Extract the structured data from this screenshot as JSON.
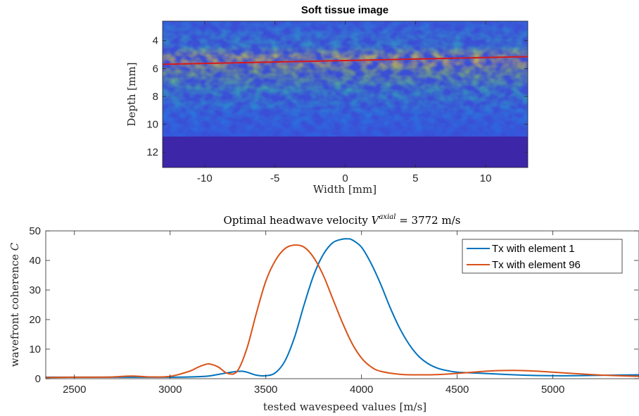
{
  "chart_data": [
    {
      "type": "heatmap",
      "title": "Soft tissue image",
      "xlabel": "Width [mm]",
      "ylabel": "Depth [mm]",
      "xlim": [
        -13,
        13
      ],
      "ylim": [
        13.1,
        2.6
      ],
      "y_reversed": true,
      "xticks": [
        -10,
        -5,
        0,
        5,
        10
      ],
      "yticks": [
        4,
        6,
        8,
        10,
        12
      ],
      "colormap": "parula",
      "imaged_depth_max": 10.8,
      "background_color": "#3e26a8",
      "overlay_line": {
        "x": [
          -13,
          13
        ],
        "y": [
          5.7,
          5.15
        ],
        "color": "#d7191c"
      },
      "bright_band_depth": 5.4
    },
    {
      "type": "line",
      "title_prefix": "Optimal headwave velocity ",
      "title_symbol": "V",
      "title_sup": "axial",
      "title_suffix": " = 3772 m/s",
      "xlabel": "tested wavespeed values [m/s]",
      "ylabel_prefix": "wavefront coherence ",
      "ylabel_symbol": "C",
      "xlim": [
        2350,
        5450
      ],
      "ylim": [
        0,
        50
      ],
      "xticks": [
        2500,
        3000,
        3500,
        4000,
        4500,
        5000
      ],
      "yticks": [
        0,
        10,
        20,
        30,
        40,
        50
      ],
      "legend_position": "top-right",
      "series": [
        {
          "name": "Tx with element 1",
          "color": "#0072bd",
          "x": [
            2350,
            2500,
            2700,
            2900,
            3000,
            3100,
            3200,
            3300,
            3380,
            3450,
            3500,
            3550,
            3600,
            3650,
            3700,
            3750,
            3800,
            3850,
            3900,
            3925,
            3950,
            4000,
            4050,
            4100,
            4150,
            4200,
            4250,
            4300,
            4350,
            4400,
            4450,
            4500,
            4600,
            4700,
            4800,
            4900,
            5000,
            5100,
            5200,
            5300,
            5450
          ],
          "y": [
            0.5,
            0.5,
            0.5,
            0.5,
            0.5,
            0.6,
            0.9,
            2.0,
            2.5,
            1.2,
            1.0,
            2.0,
            6.0,
            14.0,
            25.0,
            35.0,
            42.0,
            46.0,
            47.2,
            47.3,
            47.0,
            44.5,
            39.0,
            32.0,
            24.0,
            17.0,
            11.5,
            7.5,
            5.0,
            3.5,
            2.7,
            2.2,
            1.9,
            1.6,
            1.3,
            1.1,
            1.0,
            1.0,
            1.1,
            1.2,
            1.3
          ]
        },
        {
          "name": "Tx with element 96",
          "color": "#d95319",
          "x": [
            2350,
            2500,
            2600,
            2700,
            2800,
            2900,
            3000,
            3100,
            3150,
            3200,
            3250,
            3300,
            3350,
            3400,
            3450,
            3500,
            3550,
            3600,
            3650,
            3700,
            3750,
            3800,
            3850,
            3900,
            3950,
            4000,
            4050,
            4100,
            4200,
            4300,
            4400,
            4500,
            4600,
            4700,
            4800,
            4900,
            5000,
            5100,
            5200,
            5300,
            5450
          ],
          "y": [
            0.4,
            0.5,
            0.5,
            0.6,
            0.9,
            0.6,
            0.8,
            2.5,
            4.0,
            5.0,
            4.0,
            1.8,
            2.5,
            10.0,
            22.0,
            33.0,
            40.0,
            44.0,
            45.2,
            44.5,
            41.0,
            35.0,
            27.0,
            19.0,
            12.0,
            7.0,
            4.0,
            2.5,
            1.5,
            1.3,
            1.4,
            1.8,
            2.3,
            2.7,
            2.8,
            2.6,
            2.2,
            1.8,
            1.4,
            1.1,
            0.8
          ]
        }
      ]
    }
  ]
}
